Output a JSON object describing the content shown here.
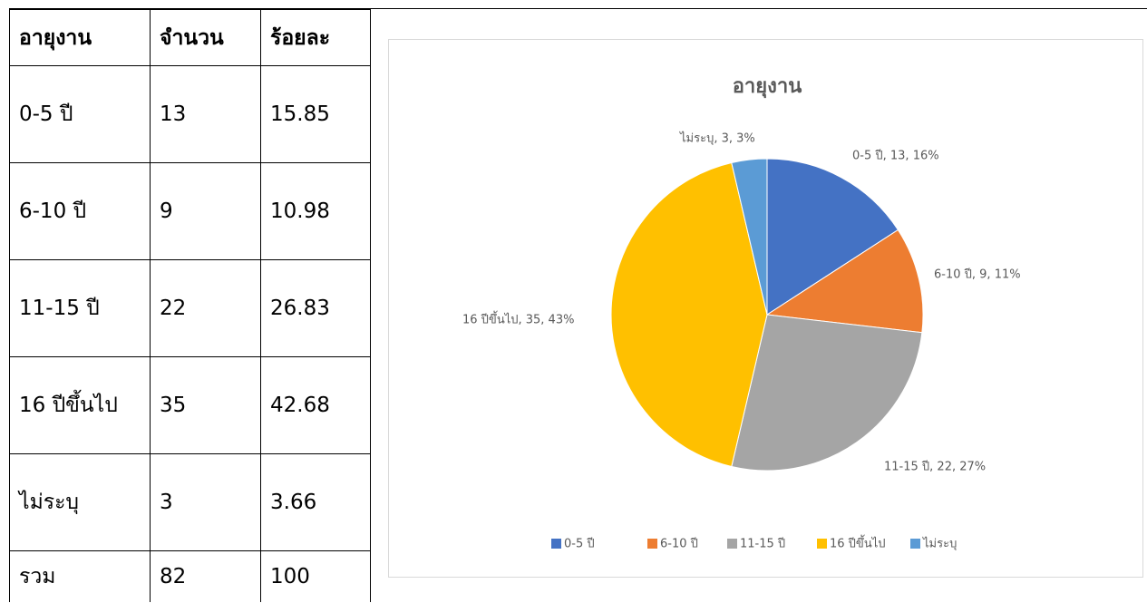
{
  "table": {
    "header": [
      "อายุงาน",
      "จำนวน",
      "ร้อยละ"
    ],
    "rows": [
      [
        "0-5 ปี",
        "13",
        "15.85"
      ],
      [
        "6-10 ปี",
        "9",
        "10.98"
      ],
      [
        "11-15 ปี",
        "22",
        "26.83"
      ],
      [
        "16 ปีขึ้นไป",
        "35",
        "42.68"
      ],
      [
        "ไม่ระบุ",
        "3",
        "3.66"
      ],
      [
        "รวม",
        "82",
        "100"
      ]
    ]
  },
  "chart_data": {
    "type": "pie",
    "title": "อายุงาน",
    "categories": [
      "0-5 ปี",
      "6-10 ปี",
      "11-15 ปี",
      "16 ปีขึ้นไป",
      "ไม่ระบุ"
    ],
    "values": [
      13,
      9,
      22,
      35,
      3
    ],
    "value_labels": [
      "0-5 ปี, 13, 16%",
      "6-10 ปี, 9, 11%",
      "11-15 ปี, 22, 27%",
      "16 ปีขึ้นไป, 35, 43%",
      "ไม่ระบุ, 3, 3%"
    ],
    "colors": [
      "#4472c4",
      "#ed7d31",
      "#a5a5a5",
      "#ffc000",
      "#5b9bd5"
    ],
    "legend": "bottom"
  }
}
